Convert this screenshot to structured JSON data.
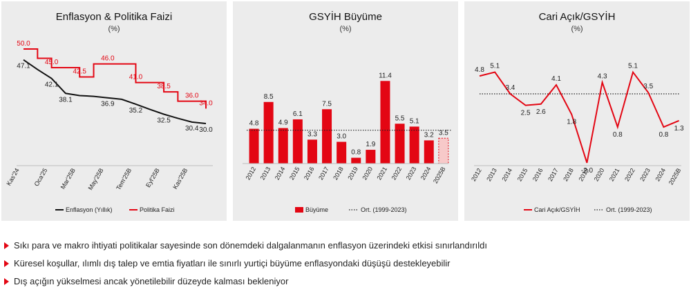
{
  "colors": {
    "red": "#e30613",
    "black": "#111111",
    "bar_light": "#f7c9c9",
    "panel_bg": "#ececec"
  },
  "panels": [
    {
      "title": "Enflasyon & Politika Faizi",
      "unit": "(%)"
    },
    {
      "title": "GSYİH Büyüme",
      "unit": "(%)"
    },
    {
      "title": "Cari Açık/GSYİH",
      "unit": "(%)"
    }
  ],
  "bullets": [
    "Sıkı para ve makro ihtiyati politikalar sayesinde son dönemdeki dalgalanmanın enflasyon üzerindeki etkisi sınırlandırıldı",
    "Küresel koşullar, ılımlı dış talep ve emtia fiyatları ile sınırlı yurtiçi büyüme enflasyondaki düşüşü destekleyebilir",
    "Dış açığın yükselmesi ancak yönetilebilir düzeyde kalması bekleniyor"
  ],
  "chart_data": [
    {
      "type": "line",
      "title": "Enflasyon & Politika Faizi",
      "subtitle": "(%)",
      "x_tick_labels": [
        "Kas'24",
        "Oca'25",
        "Mar'25B",
        "May'25B",
        "Tem'25B",
        "Eyl'25B",
        "Kas'25B"
      ],
      "series": [
        {
          "name": "Enflasyon (Yıllık)",
          "color": "#111111",
          "values": [
            47.1,
            44.5,
            42.1,
            38.1,
            37.5,
            37.3,
            36.9,
            36.5,
            35.2,
            33.8,
            32.5,
            31.4,
            30.4,
            30.0
          ],
          "labels": {
            "0": "47.1",
            "2": "42.1",
            "3": "38.1",
            "6": "36.9",
            "8": "35.2",
            "10": "32.5",
            "12": "30.4",
            "13": "30.0"
          }
        },
        {
          "name": "Politika Faizi",
          "color": "#e30613",
          "step": true,
          "values": [
            50.0,
            47.5,
            45.0,
            45.0,
            42.5,
            46.0,
            46.0,
            46.0,
            41.0,
            41.0,
            38.5,
            36.0,
            36.0,
            34.0
          ],
          "labels": {
            "0": "50.0",
            "2": "45.0",
            "4": "42.5",
            "6": "46.0",
            "8": "41.0",
            "10": "38.5",
            "12": "36.0",
            "13": "34.0"
          }
        }
      ],
      "legend_position": "bottom",
      "grid": false
    },
    {
      "type": "bar",
      "title": "GSYİH Büyüme",
      "subtitle": "(%)",
      "categories": [
        "2012",
        "2013",
        "2014",
        "2015",
        "2016",
        "2017",
        "2018",
        "2019",
        "2020",
        "2021",
        "2022",
        "2023",
        "2024",
        "2025B"
      ],
      "series": [
        {
          "name": "Büyüme",
          "color": "#e30613",
          "values": [
            4.8,
            8.5,
            4.9,
            6.1,
            3.3,
            7.5,
            3.0,
            0.8,
            1.9,
            11.4,
            5.5,
            5.1,
            3.2,
            3.5
          ],
          "labels": [
            "4.8",
            "8.5",
            "4.9",
            "6.1",
            "3.3",
            "7.5",
            "3.0",
            "0.8",
            "1.9",
            "11.4",
            "5.5",
            "5.1",
            "3.2",
            "3.5"
          ]
        }
      ],
      "reference_line": {
        "name": "Ort. (1999-2023)",
        "value": 4.6,
        "style": "dotted"
      },
      "forecast_last_bar": true,
      "ylim": [
        0,
        12
      ],
      "legend_position": "bottom",
      "grid": false
    },
    {
      "type": "line",
      "title": "Cari Açık/GSYİH",
      "subtitle": "(%)",
      "categories": [
        "2012",
        "2013",
        "2014",
        "2015",
        "2016",
        "2017",
        "2018",
        "2019",
        "2020",
        "2021",
        "2022",
        "2023",
        "2024",
        "2025B"
      ],
      "series": [
        {
          "name": "Cari Açık/GSYİH",
          "color": "#e30613",
          "values": [
            4.8,
            5.1,
            3.4,
            2.5,
            2.6,
            4.1,
            1.8,
            -2.0,
            4.3,
            0.8,
            5.1,
            3.5,
            0.8,
            1.3
          ],
          "labels": [
            "4.8",
            "5.1",
            "3.4",
            "2.5",
            "2.6",
            "4.1",
            "1.8",
            "-2.0",
            "4.3",
            "0.8",
            "5.1",
            "3.5",
            "0.8",
            "1.3"
          ],
          "label_pos": [
            "above",
            "above",
            "above",
            "below",
            "below",
            "above",
            "below",
            "below",
            "above",
            "below",
            "above",
            "above",
            "below",
            "below"
          ]
        }
      ],
      "reference_line": {
        "name": "Ort. (1999-2023)",
        "value": 3.4,
        "style": "dotted"
      },
      "ylim": [
        -2.5,
        6
      ],
      "legend_position": "bottom",
      "grid": false
    }
  ]
}
